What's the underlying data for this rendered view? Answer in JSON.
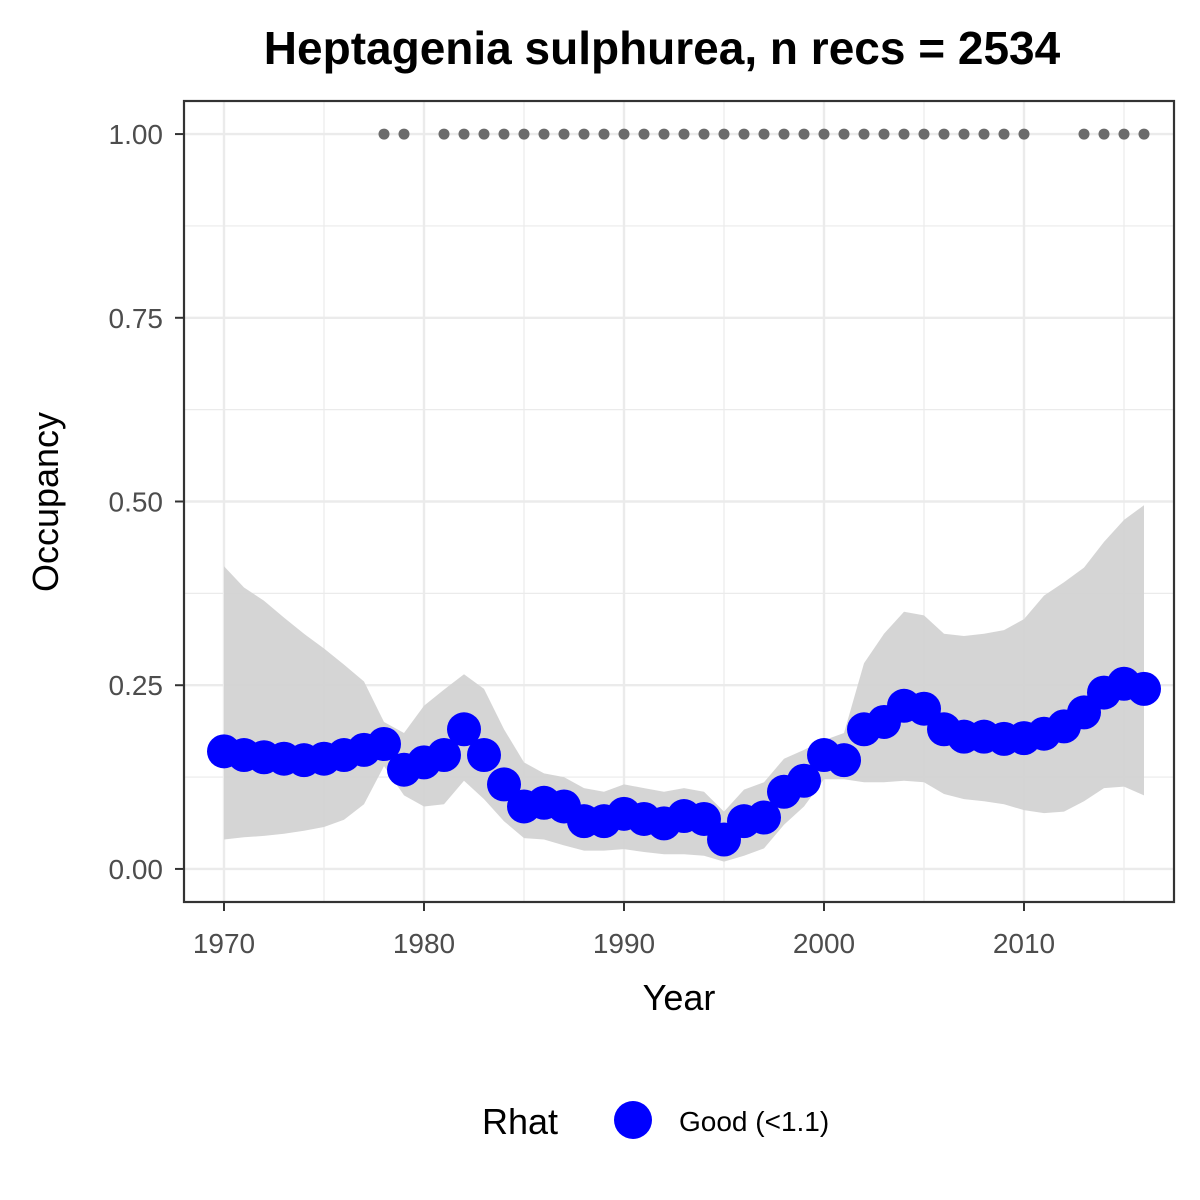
{
  "chart_data": {
    "type": "line",
    "title": "Heptagenia sulphurea, n recs = 2534",
    "xlabel": "Year",
    "ylabel": "Occupancy",
    "xlim": [
      1968,
      2017.5
    ],
    "ylim": [
      -0.045,
      1.045
    ],
    "x_ticks": [
      1970,
      1980,
      1990,
      2000,
      2010
    ],
    "x_tick_labels": [
      "1970",
      "1980",
      "1990",
      "2000",
      "2010"
    ],
    "y_ticks": [
      0,
      0.25,
      0.5,
      0.75,
      1.0
    ],
    "y_tick_labels": [
      "0.00",
      "0.25",
      "0.50",
      "0.75",
      "1.00"
    ],
    "grid": true,
    "colors": {
      "point": "#0000ff",
      "ribbon": "#d3d3d3",
      "records": "#6b6b6b",
      "grid": "#ebebeb",
      "panel_border": "#333333"
    },
    "series": [
      {
        "x": [
          1970,
          1971,
          1972,
          1973,
          1974,
          1975,
          1976,
          1977,
          1978,
          1979,
          1980,
          1981,
          1982,
          1983,
          1984,
          1985,
          1986,
          1987,
          1988,
          1989,
          1990,
          1991,
          1992,
          1993,
          1994,
          1995,
          1996,
          1997,
          1998,
          1999,
          2000,
          2001,
          2002,
          2003,
          2004,
          2005,
          2006,
          2007,
          2008,
          2009,
          2010,
          2011,
          2012,
          2013,
          2014,
          2015,
          2016
        ],
        "y": [
          0.16,
          0.155,
          0.152,
          0.15,
          0.148,
          0.15,
          0.155,
          0.162,
          0.17,
          0.135,
          0.145,
          0.155,
          0.19,
          0.155,
          0.115,
          0.085,
          0.09,
          0.085,
          0.065,
          0.065,
          0.075,
          0.068,
          0.062,
          0.072,
          0.068,
          0.04,
          0.065,
          0.07,
          0.105,
          0.12,
          0.155,
          0.148,
          0.19,
          0.2,
          0.222,
          0.218,
          0.19,
          0.18,
          0.18,
          0.177,
          0.178,
          0.184,
          0.194,
          0.213,
          0.24,
          0.252,
          0.245
        ],
        "lower": [
          0.04,
          0.043,
          0.045,
          0.048,
          0.052,
          0.057,
          0.067,
          0.088,
          0.14,
          0.1,
          0.085,
          0.088,
          0.12,
          0.095,
          0.065,
          0.042,
          0.04,
          0.032,
          0.025,
          0.025,
          0.027,
          0.023,
          0.02,
          0.02,
          0.018,
          0.01,
          0.018,
          0.028,
          0.06,
          0.085,
          0.122,
          0.122,
          0.118,
          0.118,
          0.12,
          0.118,
          0.102,
          0.095,
          0.092,
          0.088,
          0.08,
          0.076,
          0.078,
          0.092,
          0.11,
          0.112,
          0.1
        ],
        "upper": [
          0.412,
          0.383,
          0.365,
          0.342,
          0.32,
          0.3,
          0.278,
          0.255,
          0.2,
          0.185,
          0.222,
          0.244,
          0.265,
          0.245,
          0.19,
          0.145,
          0.13,
          0.125,
          0.11,
          0.105,
          0.115,
          0.11,
          0.105,
          0.11,
          0.105,
          0.078,
          0.108,
          0.118,
          0.15,
          0.162,
          0.175,
          0.185,
          0.28,
          0.32,
          0.35,
          0.345,
          0.32,
          0.317,
          0.32,
          0.325,
          0.34,
          0.372,
          0.39,
          0.41,
          0.445,
          0.475,
          0.495
        ]
      }
    ],
    "records": {
      "y": 1.0,
      "years": [
        1978,
        1979,
        1981,
        1982,
        1983,
        1984,
        1985,
        1986,
        1987,
        1988,
        1989,
        1990,
        1991,
        1992,
        1993,
        1994,
        1995,
        1996,
        1997,
        1998,
        1999,
        2000,
        2001,
        2002,
        2003,
        2004,
        2005,
        2006,
        2007,
        2008,
        2009,
        2010,
        2013,
        2014,
        2015,
        2016
      ]
    },
    "legend": {
      "title": "Rhat",
      "label": "Good (<1.1)",
      "position": "bottom"
    }
  }
}
